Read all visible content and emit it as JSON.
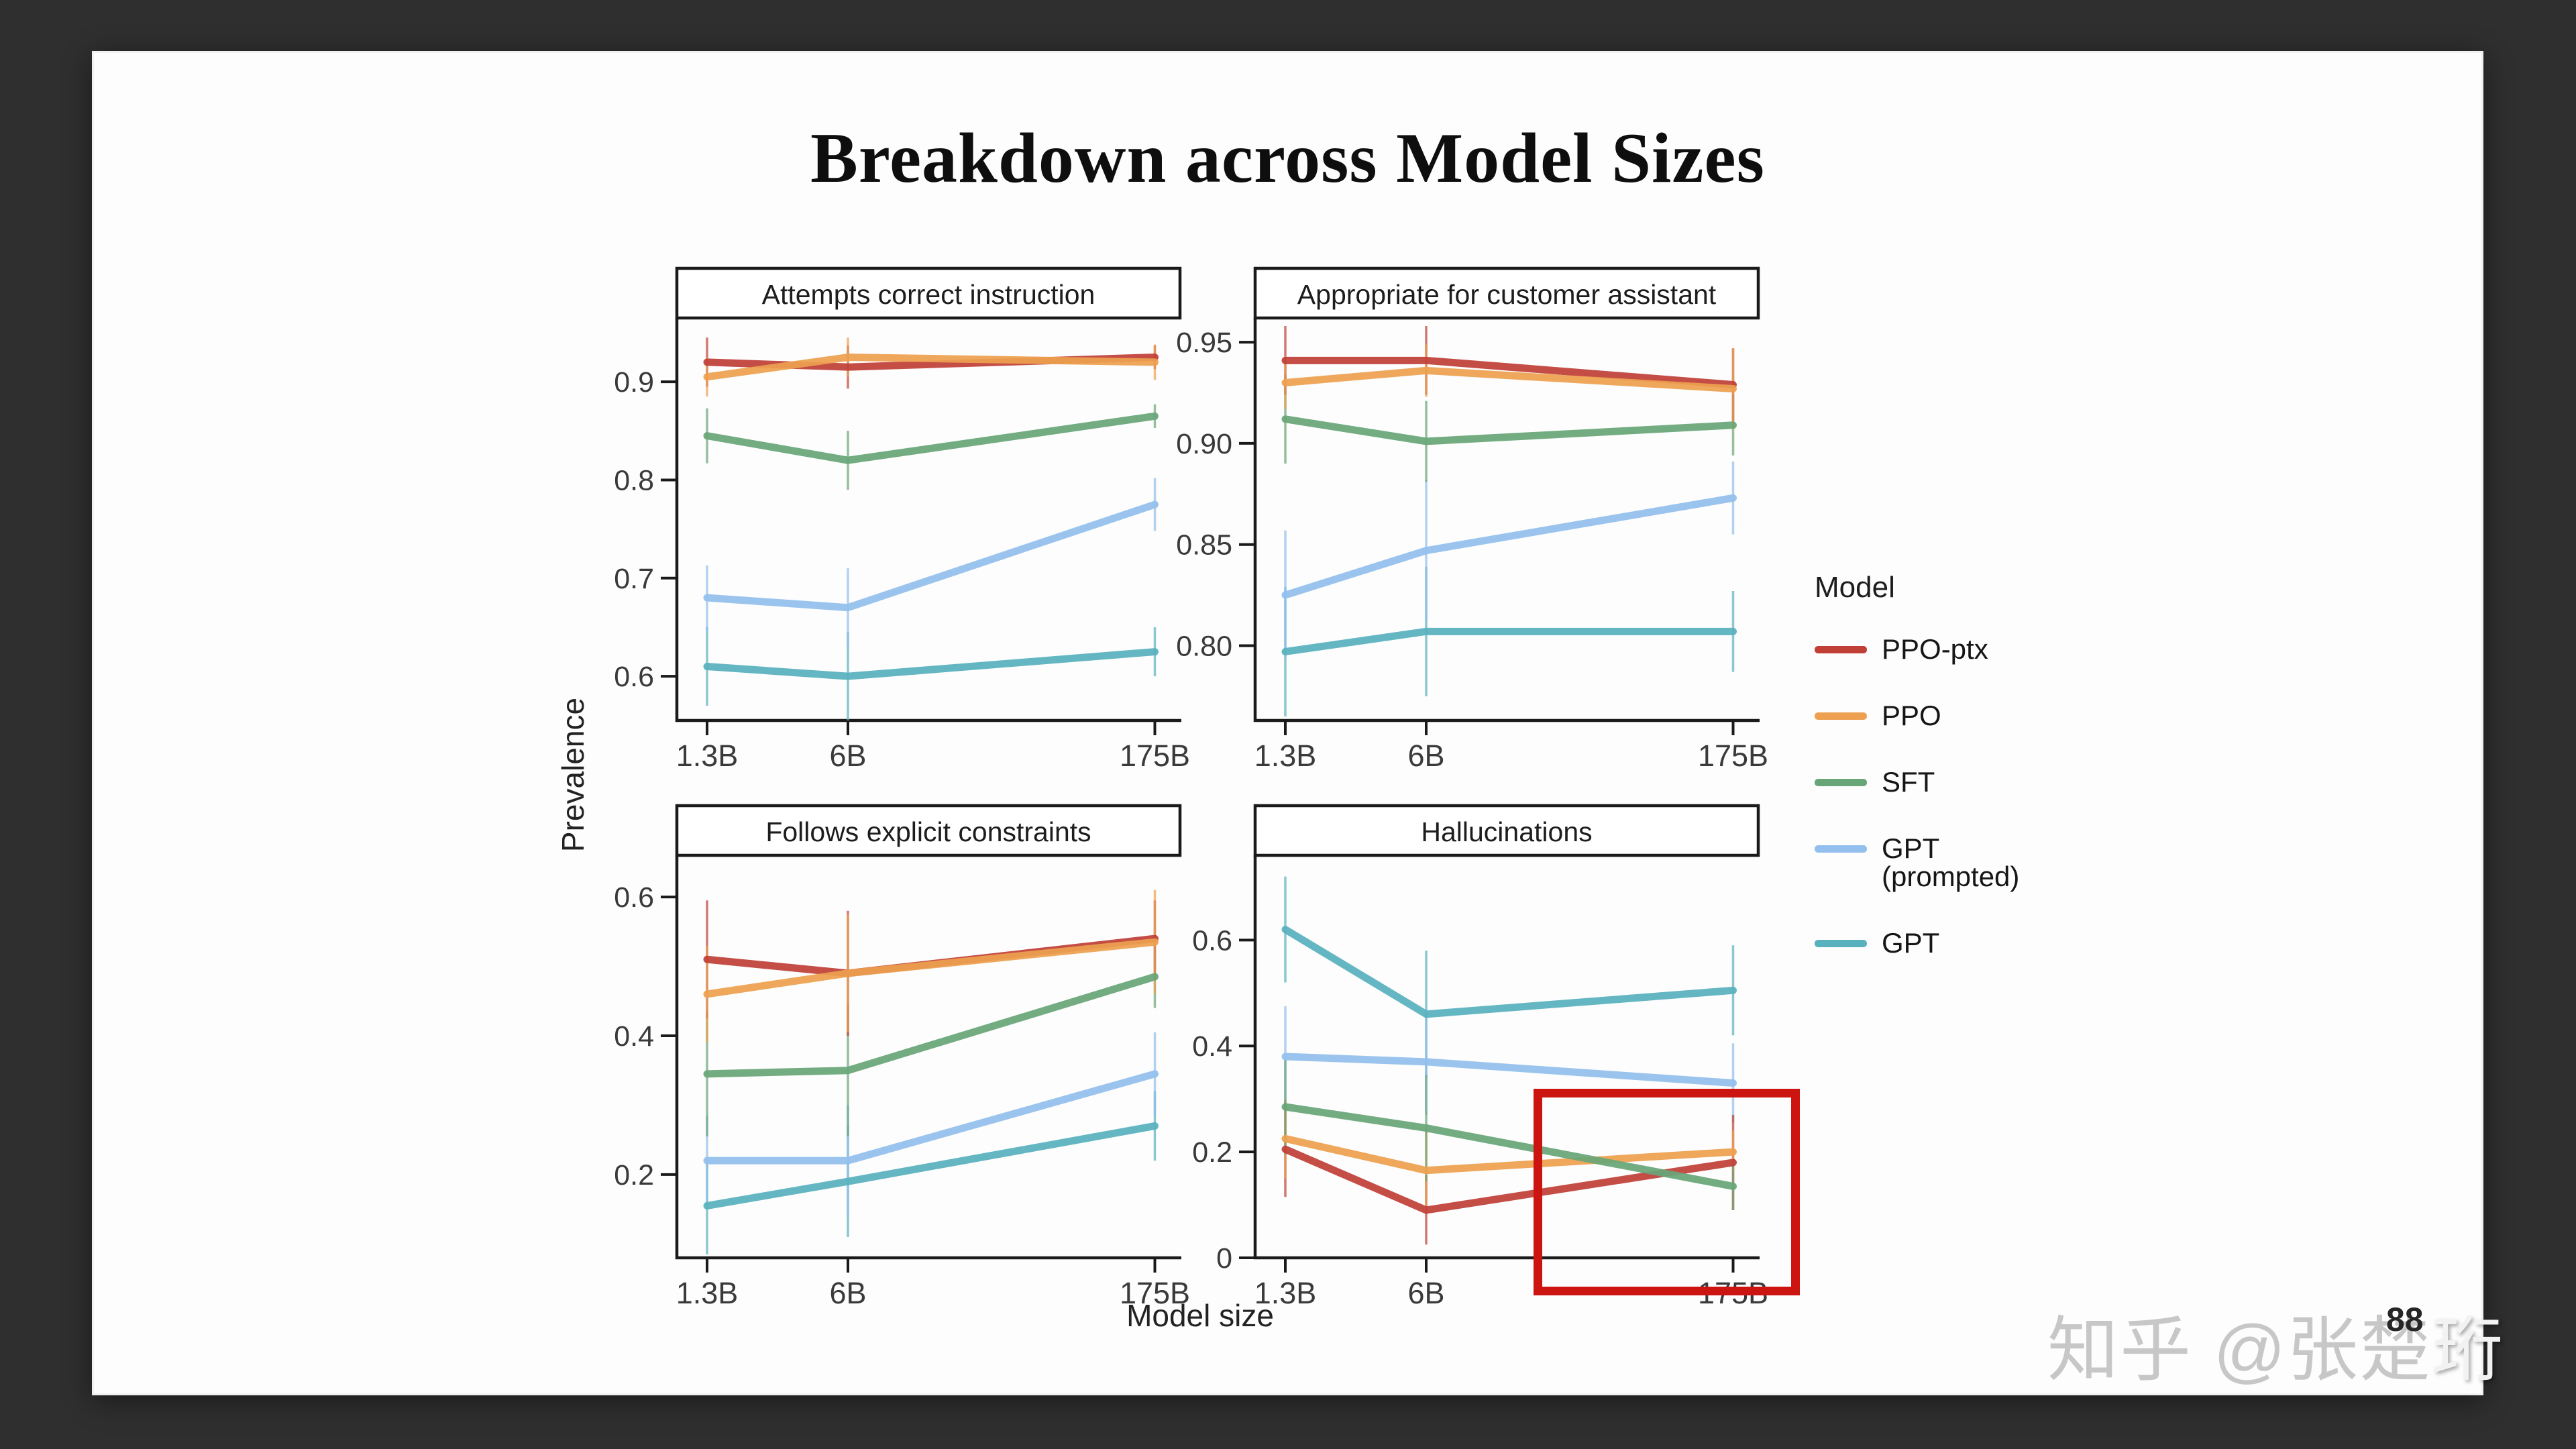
{
  "app": {
    "background_color": "#2f2f2f",
    "slide_color": "#fdfdfd"
  },
  "slide": {
    "title": "Breakdown across Model Sizes",
    "page_number": "88",
    "watermark_gray_part": "知乎 @张楚",
    "watermark_white_part": "珩"
  },
  "axes": {
    "xlabel": "Model size",
    "ylabel": "Prevalence"
  },
  "legend": {
    "title": "Model",
    "entries": [
      {
        "label": "PPO-ptx",
        "color": "#c04038"
      },
      {
        "label": "PPO",
        "color": "#eda04f"
      },
      {
        "label": "SFT",
        "color": "#68a677"
      },
      {
        "label": "GPT (prompted)",
        "color": "#92bfed"
      },
      {
        "label": "GPT",
        "color": "#58b2bd"
      }
    ]
  },
  "annotation": {
    "highlight_box_color": "#cc1410",
    "highlight_target": "Hallucinations at 175B"
  },
  "chart_data": [
    {
      "type": "line",
      "title": "Attempts correct instruction",
      "x_categories": [
        "1.3B",
        "6B",
        "175B"
      ],
      "x_scale": "log",
      "ylim": [
        0.555,
        0.965
      ],
      "ytick_values": [
        0.6,
        0.7,
        0.8,
        0.9
      ],
      "ytick_labels": [
        "0.6",
        "0.7",
        "0.8",
        "0.9"
      ],
      "series": [
        {
          "name": "GPT",
          "values": [
            0.61,
            0.6,
            0.625
          ],
          "errors": [
            0.04,
            0.045,
            0.025
          ]
        },
        {
          "name": "GPT (prompted)",
          "values": [
            0.68,
            0.67,
            0.775
          ],
          "errors": [
            0.033,
            0.04,
            0.027
          ]
        },
        {
          "name": "SFT",
          "values": [
            0.845,
            0.82,
            0.865
          ],
          "errors": [
            0.028,
            0.03,
            0.012
          ]
        },
        {
          "name": "PPO-ptx",
          "values": [
            0.92,
            0.915,
            0.925
          ],
          "errors": [
            0.025,
            0.022,
            0.012
          ]
        },
        {
          "name": "PPO",
          "values": [
            0.905,
            0.925,
            0.92
          ],
          "errors": [
            0.02,
            0.02,
            0.018
          ]
        }
      ]
    },
    {
      "type": "line",
      "title": "Appropriate for customer assistant",
      "x_categories": [
        "1.3B",
        "6B",
        "175B"
      ],
      "x_scale": "log",
      "ylim": [
        0.763,
        0.962
      ],
      "ytick_values": [
        0.8,
        0.85,
        0.9,
        0.95
      ],
      "ytick_labels": [
        "0.80",
        "0.85",
        "0.90",
        "0.95"
      ],
      "series": [
        {
          "name": "GPT",
          "values": [
            0.797,
            0.807,
            0.807
          ],
          "errors": [
            0.032,
            0.032,
            0.02
          ]
        },
        {
          "name": "GPT (prompted)",
          "values": [
            0.825,
            0.847,
            0.873
          ],
          "errors": [
            0.032,
            0.035,
            0.018
          ]
        },
        {
          "name": "SFT",
          "values": [
            0.912,
            0.901,
            0.909
          ],
          "errors": [
            0.022,
            0.02,
            0.015
          ]
        },
        {
          "name": "PPO-ptx",
          "values": [
            0.941,
            0.941,
            0.929
          ],
          "errors": [
            0.017,
            0.017,
            0.018
          ]
        },
        {
          "name": "PPO",
          "values": [
            0.93,
            0.936,
            0.927
          ],
          "errors": [
            0.013,
            0.013,
            0.02
          ]
        }
      ]
    },
    {
      "type": "line",
      "title": "Follows explicit constraints",
      "x_categories": [
        "1.3B",
        "6B",
        "175B"
      ],
      "x_scale": "log",
      "ylim": [
        0.08,
        0.66
      ],
      "ytick_values": [
        0.2,
        0.4,
        0.6
      ],
      "ytick_labels": [
        "0.2",
        "0.4",
        "0.6"
      ],
      "series": [
        {
          "name": "GPT",
          "values": [
            0.155,
            0.19,
            0.27
          ],
          "errors": [
            0.07,
            0.08,
            0.05
          ]
        },
        {
          "name": "GPT (prompted)",
          "values": [
            0.22,
            0.22,
            0.345
          ],
          "errors": [
            0.065,
            0.08,
            0.06
          ]
        },
        {
          "name": "SFT",
          "values": [
            0.345,
            0.35,
            0.485
          ],
          "errors": [
            0.09,
            0.095,
            0.045
          ]
        },
        {
          "name": "PPO-ptx",
          "values": [
            0.51,
            0.49,
            0.54
          ],
          "errors": [
            0.085,
            0.09,
            0.055
          ]
        },
        {
          "name": "PPO",
          "values": [
            0.46,
            0.49,
            0.535
          ],
          "errors": [
            0.07,
            0.085,
            0.075
          ]
        }
      ]
    },
    {
      "type": "line",
      "title": "Hallucinations",
      "x_categories": [
        "1.3B",
        "6B",
        "175B"
      ],
      "x_scale": "log",
      "ylim": [
        0,
        0.76
      ],
      "ytick_values": [
        0,
        0.2,
        0.4,
        0.6
      ],
      "ytick_labels": [
        "0",
        "0.2",
        "0.4",
        "0.6"
      ],
      "series": [
        {
          "name": "GPT",
          "values": [
            0.62,
            0.46,
            0.505
          ],
          "errors": [
            0.1,
            0.12,
            0.085
          ]
        },
        {
          "name": "GPT (prompted)",
          "values": [
            0.38,
            0.37,
            0.33
          ],
          "errors": [
            0.095,
            0.1,
            0.075
          ]
        },
        {
          "name": "PPO-ptx",
          "values": [
            0.205,
            0.09,
            0.18
          ],
          "errors": [
            0.09,
            0.065,
            0.09
          ]
        },
        {
          "name": "PPO",
          "values": [
            0.225,
            0.165,
            0.2
          ],
          "errors": [
            0.075,
            0.08,
            0.04
          ]
        },
        {
          "name": "SFT",
          "values": [
            0.285,
            0.245,
            0.135
          ],
          "errors": [
            0.09,
            0.1,
            0.045
          ]
        }
      ]
    }
  ]
}
